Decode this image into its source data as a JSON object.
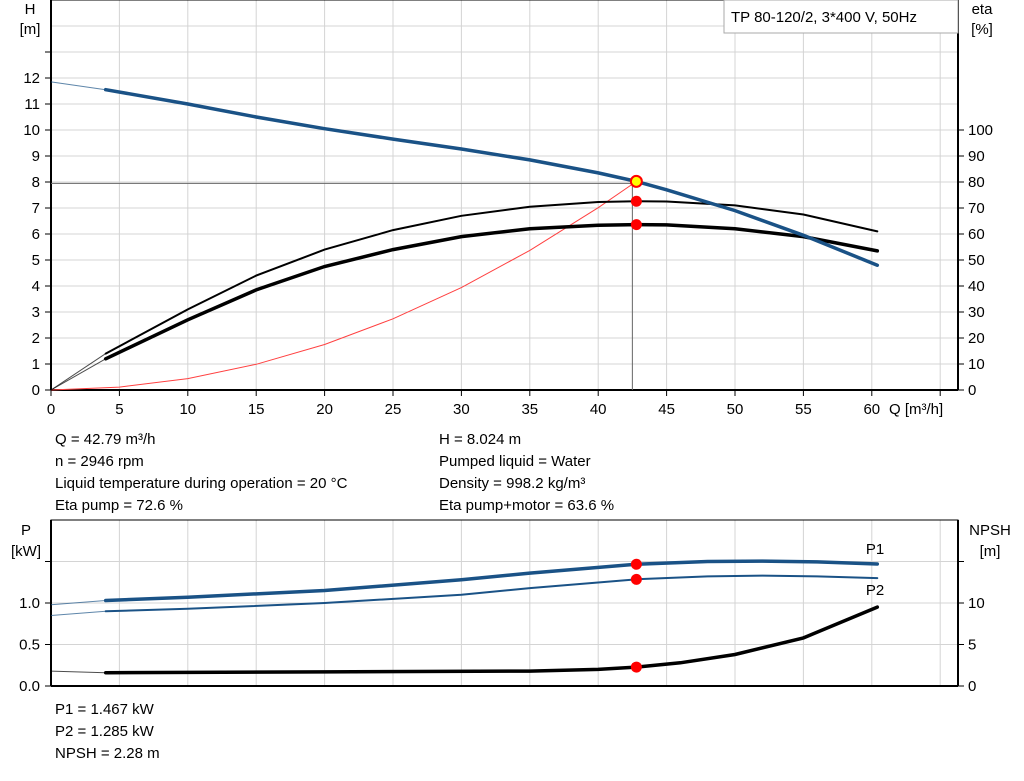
{
  "chart_data": [
    {
      "type": "line",
      "title": "TP 80-120/2, 3*400 V, 50Hz",
      "xlabel": "Q [m³/h]",
      "ylabel_left": {
        "name": "H",
        "unit": "[m]"
      },
      "ylabel_right": {
        "name": "eta",
        "unit": "[%]"
      },
      "xlim": [
        0,
        66.3
      ],
      "ylim_left": [
        0,
        15
      ],
      "ylim_right": [
        0,
        150
      ],
      "x_ticks": [
        0,
        5,
        10,
        15,
        20,
        25,
        30,
        35,
        40,
        45,
        50,
        55,
        60
      ],
      "y_left_ticks": [
        0,
        1,
        2,
        3,
        4,
        5,
        6,
        7,
        8,
        9,
        10,
        11,
        12
      ],
      "y_right_ticks": [
        0,
        10,
        20,
        30,
        40,
        50,
        60,
        70,
        80,
        90,
        100
      ],
      "grid": true,
      "legend": "top-right",
      "colors": {
        "head": "#1a5286",
        "eta": "#000000",
        "system": "#ff4040",
        "point": "#ff0000",
        "duty_point": "#ffff00"
      },
      "series": [
        {
          "key": "head",
          "axis": "left",
          "points": [
            [
              0,
              11.85
            ],
            [
              4,
              11.55
            ],
            [
              10,
              11.0
            ],
            [
              15,
              10.5
            ],
            [
              20,
              10.05
            ],
            [
              25,
              9.65
            ],
            [
              30,
              9.27
            ],
            [
              35,
              8.85
            ],
            [
              40,
              8.35
            ],
            [
              42.79,
              8.024
            ],
            [
              45,
              7.7
            ],
            [
              50,
              6.9
            ],
            [
              55,
              5.95
            ],
            [
              60.4,
              4.8
            ]
          ]
        },
        {
          "key": "eta_pump",
          "axis": "right",
          "points": [
            [
              0,
              0
            ],
            [
              4,
              14
            ],
            [
              10,
              31
            ],
            [
              15,
              44
            ],
            [
              20,
              54
            ],
            [
              25,
              61.5
            ],
            [
              30,
              67
            ],
            [
              35,
              70.5
            ],
            [
              40,
              72.3
            ],
            [
              42.79,
              72.6
            ],
            [
              45,
              72.5
            ],
            [
              50,
              71
            ],
            [
              55,
              67.5
            ],
            [
              60.4,
              61
            ]
          ]
        },
        {
          "key": "eta_pump_motor",
          "axis": "right",
          "points": [
            [
              0,
              0
            ],
            [
              4,
              12
            ],
            [
              10,
              27
            ],
            [
              15,
              38.5
            ],
            [
              20,
              47.5
            ],
            [
              25,
              54
            ],
            [
              30,
              59
            ],
            [
              35,
              62
            ],
            [
              40,
              63.4
            ],
            [
              42.79,
              63.6
            ],
            [
              45,
              63.5
            ],
            [
              50,
              62
            ],
            [
              55,
              59
            ],
            [
              60.4,
              53.5
            ]
          ]
        },
        {
          "key": "system_curve",
          "axis": "left",
          "points": [
            [
              0,
              0
            ],
            [
              5,
              0.11
            ],
            [
              10,
              0.44
            ],
            [
              15,
              0.99
            ],
            [
              20,
              1.75
            ],
            [
              25,
              2.74
            ],
            [
              30,
              3.94
            ],
            [
              35,
              5.37
            ],
            [
              40,
              7.01
            ],
            [
              42.79,
              8.024
            ]
          ]
        }
      ],
      "duty_point": {
        "Q": 42.79,
        "H": 8.024,
        "eta_pump": 72.6,
        "eta_pump_motor": 63.6
      }
    },
    {
      "type": "line",
      "xlim": [
        0,
        66.3
      ],
      "ylabel_left": {
        "name": "P",
        "unit": "[kW]"
      },
      "ylabel_right": {
        "name": "NPSH",
        "unit": "[m]"
      },
      "ylim_left": [
        0,
        2.0
      ],
      "ylim_right": [
        0,
        20
      ],
      "y_left_ticks": [
        "0.0",
        "0.5",
        "1.0"
      ],
      "y_right_ticks": [
        0,
        5,
        10
      ],
      "grid": true,
      "series": [
        {
          "name": "P1",
          "key": "p1",
          "axis": "left",
          "points": [
            [
              0,
              0.98
            ],
            [
              4,
              1.03
            ],
            [
              10,
              1.07
            ],
            [
              20,
              1.15
            ],
            [
              30,
              1.28
            ],
            [
              35,
              1.36
            ],
            [
              42.79,
              1.467
            ],
            [
              48,
              1.5
            ],
            [
              52,
              1.505
            ],
            [
              56,
              1.495
            ],
            [
              60.4,
              1.47
            ]
          ]
        },
        {
          "name": "P2",
          "key": "p2",
          "axis": "left",
          "points": [
            [
              0,
              0.85
            ],
            [
              4,
              0.9
            ],
            [
              10,
              0.93
            ],
            [
              20,
              1.0
            ],
            [
              30,
              1.1
            ],
            [
              35,
              1.18
            ],
            [
              42.79,
              1.285
            ],
            [
              48,
              1.32
            ],
            [
              52,
              1.33
            ],
            [
              56,
              1.32
            ],
            [
              60.4,
              1.3
            ]
          ]
        },
        {
          "key": "npsh",
          "axis": "right",
          "points": [
            [
              0,
              1.8
            ],
            [
              4,
              1.6
            ],
            [
              20,
              1.7
            ],
            [
              35,
              1.8
            ],
            [
              40,
              2.0
            ],
            [
              42.79,
              2.28
            ],
            [
              46,
              2.8
            ],
            [
              50,
              3.8
            ],
            [
              55,
              5.8
            ],
            [
              60.4,
              9.5
            ]
          ]
        }
      ],
      "duty_point": {
        "Q": 42.79,
        "P1": 1.467,
        "P2": 1.285,
        "NPSH": 2.28
      }
    }
  ],
  "info_top": {
    "left": [
      "Q = 42.79 m³/h",
      "n = 2946 rpm",
      "Liquid temperature during operation = 20 °C",
      "Eta pump = 72.6 %"
    ],
    "right": [
      "H = 8.024 m",
      "Pumped liquid = Water",
      "Density = 998.2 kg/m³",
      "Eta pump+motor = 63.6 %"
    ]
  },
  "info_bottom": [
    "P1 = 1.467 kW",
    "P2 = 1.285 kW",
    "NPSH = 2.28 m"
  ]
}
